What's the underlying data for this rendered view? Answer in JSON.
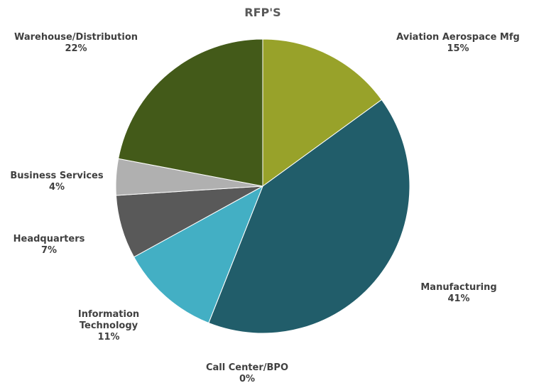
{
  "chart_data": {
    "type": "pie",
    "title": "RFP'S",
    "categories": [
      "Aviation Aerospace Mfg",
      "Manufacturing",
      "Call Center/BPO",
      "Information Technology",
      "Headquarters",
      "Business Services",
      "Warehouse/Distribution"
    ],
    "values": [
      15,
      41,
      0,
      11,
      7,
      4,
      22
    ],
    "value_labels": [
      "15%",
      "41%",
      "0%",
      "11%",
      "7%",
      "4%",
      "22%"
    ],
    "colors": [
      "#98a22a",
      "#215d6a",
      "#2f7f8f",
      "#43afc4",
      "#595959",
      "#b0b0b0",
      "#435a19"
    ]
  }
}
